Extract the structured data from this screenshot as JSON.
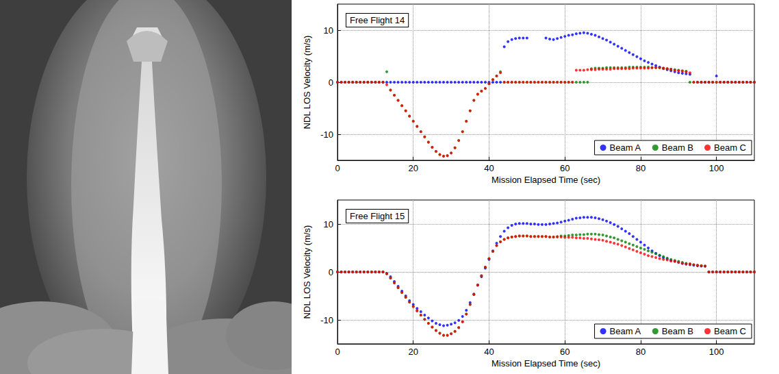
{
  "chart_data": [
    {
      "type": "scatter",
      "annotation": "Free Flight 14",
      "xlabel": "Mission Elapsed Time (sec)",
      "ylabel": "NDL LOS Velocity (m/s)",
      "xlim": [
        0,
        110
      ],
      "xticks": [
        0,
        20,
        40,
        60,
        80,
        100
      ],
      "ylim": [
        -15,
        15
      ],
      "yticks": [
        -10,
        0,
        10
      ],
      "grid": true,
      "legend": "lower right",
      "marker": "circle",
      "x": [
        0,
        1,
        2,
        3,
        4,
        5,
        6,
        7,
        8,
        9,
        10,
        11,
        12,
        13,
        14,
        15,
        16,
        17,
        18,
        19,
        20,
        21,
        22,
        23,
        24,
        25,
        26,
        27,
        28,
        29,
        30,
        31,
        32,
        33,
        34,
        35,
        36,
        37,
        38,
        39,
        40,
        41,
        42,
        43,
        44,
        45,
        46,
        47,
        48,
        49,
        50,
        51,
        52,
        53,
        54,
        55,
        56,
        57,
        58,
        59,
        60,
        61,
        62,
        63,
        64,
        65,
        66,
        67,
        68,
        69,
        70,
        71,
        72,
        73,
        74,
        75,
        76,
        77,
        78,
        79,
        80,
        81,
        82,
        83,
        84,
        85,
        86,
        87,
        88,
        89,
        90,
        91,
        92,
        93,
        94,
        95,
        96,
        97,
        98,
        99,
        100,
        101,
        102,
        103,
        104,
        105,
        106,
        107,
        108,
        109,
        110
      ],
      "series": [
        {
          "name": "Beam A",
          "color": "#0000ff",
          "values": [
            0,
            0,
            0,
            0,
            0,
            0,
            0,
            0,
            0,
            0,
            0,
            0,
            0,
            0,
            0,
            0,
            0,
            0,
            0,
            0,
            0,
            0,
            0,
            0,
            0,
            0,
            0,
            0,
            0,
            0,
            0,
            0,
            0,
            0,
            0,
            0,
            0,
            0,
            0,
            0,
            0,
            0,
            0,
            0,
            6.8,
            7.8,
            8.2,
            8.4,
            8.5,
            8.5,
            8.5,
            null,
            null,
            null,
            null,
            8.5,
            8.3,
            8.2,
            8.4,
            8.6,
            8.8,
            9.0,
            9.1,
            9.3,
            9.4,
            9.5,
            9.4,
            9.2,
            9.0,
            8.7,
            8.4,
            8.1,
            7.7,
            7.3,
            6.9,
            6.5,
            6.1,
            5.7,
            5.3,
            4.9,
            4.5,
            4.1,
            3.8,
            3.5,
            3.2,
            2.9,
            2.6,
            2.4,
            2.2,
            2.0,
            1.8,
            1.7,
            1.6,
            1.5,
            null,
            0,
            0,
            0,
            0,
            0,
            1.2,
            0,
            0,
            0,
            0,
            0,
            0,
            0,
            0,
            0,
            0
          ]
        },
        {
          "name": "Beam B",
          "color": "#008000",
          "values": [
            0,
            0,
            0,
            0,
            0,
            0,
            0,
            0,
            0,
            0,
            0,
            0,
            0,
            2.0,
            -1.5,
            -2.5,
            -3.5,
            -4.5,
            -5.5,
            -6.5,
            -7.5,
            -8.5,
            -9.5,
            -10.5,
            -11.5,
            -12.5,
            -13.3,
            -13.9,
            -14.2,
            -14.1,
            -13.6,
            -12.6,
            -11.2,
            -9.5,
            -7.5,
            -5.5,
            -3.5,
            -2.3,
            -1.7,
            -1.2,
            -0.3,
            0.5,
            1.2,
            2.0,
            0,
            0,
            0,
            0,
            0,
            0,
            0,
            0,
            0,
            0,
            0,
            0,
            0,
            0,
            0,
            0,
            0,
            0,
            0,
            0,
            0,
            0,
            0,
            2.6,
            2.7,
            2.7,
            2.7,
            2.8,
            2.8,
            2.8,
            2.8,
            2.8,
            2.8,
            2.9,
            2.9,
            2.9,
            2.9,
            2.9,
            2.9,
            2.8,
            2.8,
            2.8,
            2.7,
            2.6,
            2.5,
            2.4,
            2.3,
            2.2,
            2.1,
            0,
            0,
            0,
            0,
            0,
            0,
            0,
            0,
            0,
            0,
            0,
            0,
            0,
            0,
            0,
            0,
            0,
            0
          ]
        },
        {
          "name": "Beam C",
          "color": "#ff0000",
          "values": [
            0,
            0,
            0,
            0,
            0,
            0,
            0,
            0,
            0,
            0,
            0,
            0,
            0,
            -0.5,
            -1.5,
            -2.5,
            -3.5,
            -4.5,
            -5.5,
            -6.5,
            -7.5,
            -8.5,
            -9.5,
            -10.5,
            -11.5,
            -12.5,
            -13.3,
            -13.9,
            -14.2,
            -14.1,
            -13.6,
            -12.6,
            -11.2,
            -9.5,
            -7.5,
            -5.5,
            -3.5,
            -2.3,
            -1.7,
            -1.2,
            -0.3,
            0.5,
            1.2,
            1.8,
            0,
            0,
            0,
            0,
            0,
            0,
            0,
            0,
            0,
            0,
            0,
            0,
            0,
            0,
            0,
            0,
            0,
            0,
            0,
            2.3,
            2.3,
            2.3,
            2.4,
            2.4,
            2.4,
            2.5,
            2.5,
            2.5,
            2.5,
            2.6,
            2.6,
            2.6,
            2.6,
            2.6,
            2.7,
            2.7,
            2.7,
            2.7,
            2.7,
            2.8,
            2.8,
            2.8,
            2.7,
            2.6,
            2.5,
            2.3,
            2.2,
            2.1,
            2.0,
            1.8,
            0,
            0,
            0,
            0,
            0,
            0,
            0,
            0,
            0,
            0,
            0,
            0,
            0,
            0,
            0,
            0,
            0
          ]
        }
      ]
    },
    {
      "type": "scatter",
      "annotation": "Free Flight 15",
      "xlabel": "Mission Elapsed Time (sec)",
      "ylabel": "NDL LOS Velocity (m/s)",
      "xlim": [
        0,
        110
      ],
      "xticks": [
        0,
        20,
        40,
        60,
        80,
        100
      ],
      "ylim": [
        -15,
        15
      ],
      "yticks": [
        -10,
        0,
        10
      ],
      "grid": true,
      "legend": "lower right",
      "marker": "circle",
      "x": [
        0,
        1,
        2,
        3,
        4,
        5,
        6,
        7,
        8,
        9,
        10,
        11,
        12,
        13,
        14,
        15,
        16,
        17,
        18,
        19,
        20,
        21,
        22,
        23,
        24,
        25,
        26,
        27,
        28,
        29,
        30,
        31,
        32,
        33,
        34,
        35,
        36,
        37,
        38,
        39,
        40,
        41,
        42,
        43,
        44,
        45,
        46,
        47,
        48,
        49,
        50,
        51,
        52,
        53,
        54,
        55,
        56,
        57,
        58,
        59,
        60,
        61,
        62,
        63,
        64,
        65,
        66,
        67,
        68,
        69,
        70,
        71,
        72,
        73,
        74,
        75,
        76,
        77,
        78,
        79,
        80,
        81,
        82,
        83,
        84,
        85,
        86,
        87,
        88,
        89,
        90,
        91,
        92,
        93,
        94,
        95,
        96,
        97,
        98,
        99,
        100,
        101,
        102,
        103,
        104,
        105,
        106,
        107,
        108,
        109,
        110
      ],
      "series": [
        {
          "name": "Beam A",
          "color": "#0000ff",
          "values": [
            0,
            0,
            0,
            0,
            0,
            0,
            0,
            0,
            0,
            0,
            0,
            0,
            0,
            -0.3,
            -1,
            -2,
            -3,
            -4,
            -5,
            -6,
            -6.8,
            -7.6,
            -8.3,
            -9.0,
            -9.6,
            -10.2,
            -10.7,
            -11.0,
            -11.2,
            -11.1,
            -10.9,
            -10.6,
            -10.1,
            -9.3,
            -8.0,
            -6.4,
            -4.6,
            -2.8,
            -1.0,
            0.8,
            2.6,
            4.4,
            6.0,
            7.4,
            8.5,
            9.2,
            9.7,
            10.0,
            10.1,
            10.1,
            10.1,
            10.0,
            10.0,
            9.9,
            9.9,
            9.9,
            10.0,
            10.1,
            10.2,
            10.4,
            10.6,
            10.8,
            11.0,
            11.2,
            11.3,
            11.4,
            11.4,
            11.4,
            11.3,
            11.1,
            10.9,
            10.6,
            10.3,
            9.9,
            9.5,
            9.0,
            8.5,
            8.0,
            7.4,
            6.8,
            6.2,
            5.6,
            5.0,
            4.4,
            3.9,
            3.4,
            3.0,
            2.7,
            2.4,
            2.2,
            2.0,
            1.8,
            1.6,
            1.5,
            1.4,
            1.3,
            1.2,
            1.2,
            0,
            0,
            0,
            0,
            0,
            0,
            0,
            0,
            0,
            0,
            0,
            0,
            0
          ]
        },
        {
          "name": "Beam B",
          "color": "#008000",
          "values": [
            0,
            0,
            0,
            0,
            0,
            0,
            0,
            0,
            0,
            0,
            0,
            0,
            0,
            -0.4,
            -1.3,
            -2.3,
            -3.3,
            -4.3,
            -5.3,
            -6.3,
            -7.2,
            -8.1,
            -9.0,
            -9.9,
            -10.7,
            -11.5,
            -12.2,
            -12.8,
            -13.2,
            -13.2,
            -12.9,
            -12.4,
            -11.6,
            -10.4,
            -8.8,
            -6.8,
            -4.7,
            -2.7,
            -0.8,
            1.0,
            2.8,
            4.3,
            5.5,
            6.3,
            6.8,
            7.1,
            7.3,
            7.4,
            7.5,
            7.5,
            7.5,
            7.4,
            7.4,
            7.4,
            7.4,
            7.4,
            7.3,
            7.3,
            7.4,
            7.5,
            7.5,
            7.6,
            7.7,
            7.7,
            7.8,
            7.8,
            7.9,
            7.9,
            7.9,
            7.8,
            7.7,
            7.5,
            7.3,
            7.1,
            6.8,
            6.5,
            6.2,
            5.9,
            5.6,
            5.3,
            5.0,
            4.7,
            4.4,
            4.1,
            3.8,
            3.5,
            3.2,
            2.9,
            2.6,
            2.4,
            2.2,
            2.0,
            1.8,
            1.7,
            1.5,
            1.4,
            1.3,
            1.2,
            0,
            0,
            0,
            0,
            0,
            0,
            0,
            0,
            0,
            0,
            0,
            0,
            0
          ]
        },
        {
          "name": "Beam C",
          "color": "#ff0000",
          "values": [
            0,
            0,
            0,
            0,
            0,
            0,
            0,
            0,
            0,
            0,
            0,
            0,
            0,
            -0.4,
            -1.3,
            -2.3,
            -3.3,
            -4.3,
            -5.3,
            -6.3,
            -7.2,
            -8.1,
            -9.0,
            -9.9,
            -10.7,
            -11.5,
            -12.2,
            -12.8,
            -13.2,
            -13.2,
            -12.9,
            -12.4,
            -11.6,
            -10.4,
            -8.8,
            -6.8,
            -4.7,
            -2.7,
            -0.8,
            1.0,
            2.8,
            4.3,
            5.5,
            6.3,
            6.8,
            7.1,
            7.3,
            7.4,
            7.5,
            7.5,
            7.5,
            7.4,
            7.4,
            7.4,
            7.4,
            7.4,
            7.3,
            7.3,
            7.3,
            7.3,
            7.2,
            7.2,
            7.2,
            7.1,
            7.1,
            7.0,
            7.0,
            6.9,
            6.8,
            6.7,
            6.6,
            6.4,
            6.2,
            6.0,
            5.8,
            5.5,
            5.2,
            4.9,
            4.6,
            4.3,
            4.0,
            3.7,
            3.4,
            3.2,
            3.0,
            2.8,
            2.6,
            2.5,
            2.3,
            2.2,
            2.0,
            1.8,
            1.7,
            1.6,
            1.5,
            1.4,
            1.3,
            1.2,
            0,
            0,
            0,
            0,
            0,
            0,
            0,
            0,
            0,
            0,
            0,
            0,
            0
          ]
        }
      ]
    }
  ]
}
